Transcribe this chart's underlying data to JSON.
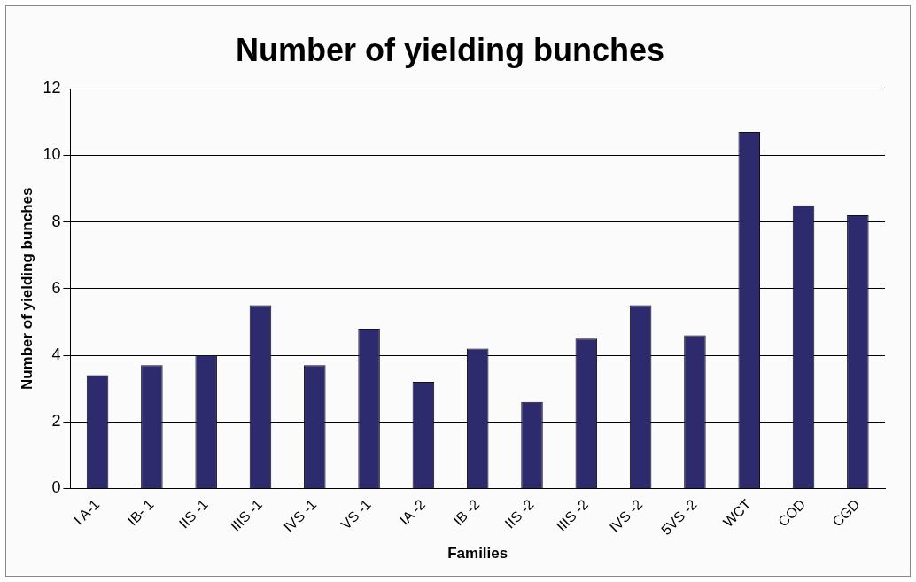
{
  "chart_data": {
    "type": "bar",
    "title": "Number of yielding bunches",
    "xlabel": "Families",
    "ylabel": "Number of yielding bunches",
    "categories": [
      "I A-1",
      "IB- 1",
      "IIS -1",
      "IIIS -1",
      "IVS -1",
      "VS -1",
      "IA -2",
      "IB -2",
      "IIS -2",
      "IIIS -2",
      "IVS -2",
      "5VS -2",
      "WCT",
      "COD",
      "CGD"
    ],
    "values": [
      3.4,
      3.7,
      4.0,
      5.5,
      3.7,
      4.8,
      3.2,
      4.2,
      2.6,
      4.5,
      5.5,
      4.6,
      10.7,
      8.5,
      8.2
    ],
    "color": "#2e2a6e",
    "ylim": [
      0,
      12
    ],
    "yticks": [
      0,
      2,
      4,
      6,
      8,
      10,
      12
    ],
    "grid": "y",
    "legend": false
  }
}
